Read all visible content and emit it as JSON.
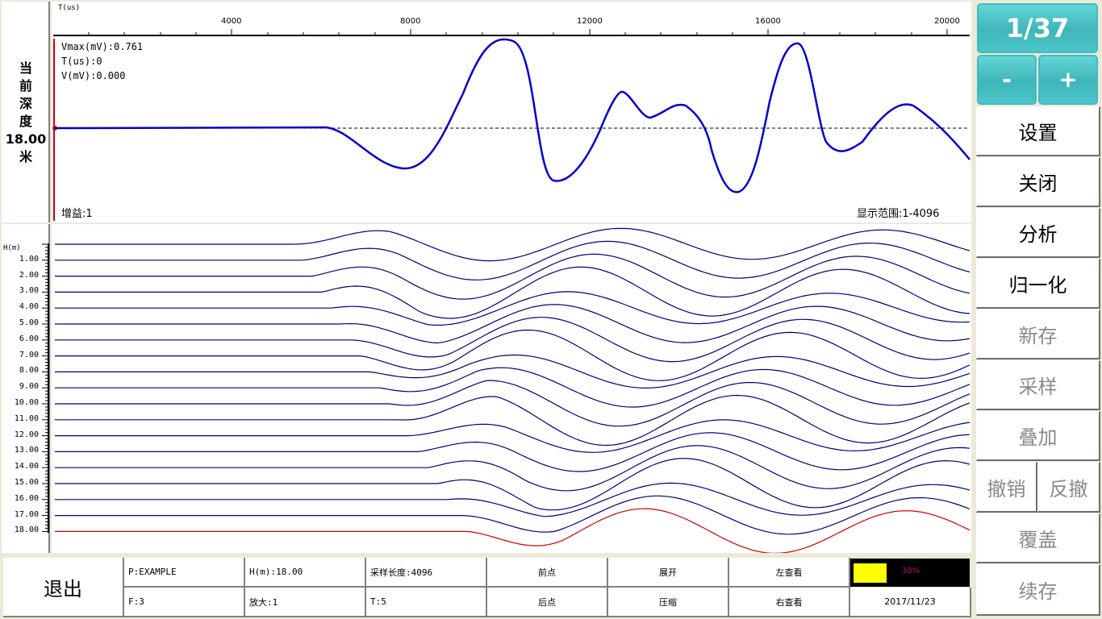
{
  "depth_panel": {
    "label_chars": [
      "当",
      "前",
      "深",
      "度"
    ],
    "value": "18.00",
    "unit": "米"
  },
  "time_axis": {
    "title": "T(us)",
    "ticks": [
      "4000",
      "8000",
      "12000",
      "16000",
      "20000"
    ]
  },
  "waveform": {
    "vmax": "Vmax(mV):0.761",
    "t": "T(us):0",
    "v": "V(mV):0.000",
    "gain": "增益:1",
    "display_range": "显示范围:1-4096",
    "line_color": "#0000cc",
    "cursor_color": "#cc0000"
  },
  "depth_axis": {
    "title": "H(m)",
    "ticks": [
      "1.00",
      "2.00",
      "3.00",
      "4.00",
      "5.00",
      "6.00",
      "7.00",
      "8.00",
      "9.00",
      "10.00",
      "11.00",
      "12.00",
      "13.00",
      "14.00",
      "15.00",
      "16.00",
      "17.00",
      "18.00"
    ],
    "trace_color": "#000080",
    "current_trace_color": "#cc0000"
  },
  "sidebar": {
    "page_indicator": "1/37",
    "minus_label": "-",
    "plus_label": "+",
    "buttons": [
      {
        "label": "设置",
        "enabled": true
      },
      {
        "label": "关闭",
        "enabled": true
      },
      {
        "label": "分析",
        "enabled": true
      },
      {
        "label": "归一化",
        "enabled": true
      },
      {
        "label": "新存",
        "enabled": false
      },
      {
        "label": "采样",
        "enabled": false
      },
      {
        "label": "叠加",
        "enabled": false
      }
    ],
    "undo_label": "撤销",
    "redo_label": "反撤",
    "overwrite_label": "覆盖",
    "append_label": "续存"
  },
  "bottom_bar": {
    "exit_label": "退出",
    "project": "P:EXAMPLE",
    "file": "F:3",
    "depth": "H(m):18.00",
    "zoom": "放大:1",
    "sample_length": "采样长度:4096",
    "t_value": "T:5",
    "prev_point": "前点",
    "next_point": "后点",
    "expand": "展开",
    "compress": "压缩",
    "view_left": "左查看",
    "view_right": "右查看",
    "battery_percent": "30%",
    "battery_color": "#ffff00",
    "date": "2017/11/23"
  }
}
